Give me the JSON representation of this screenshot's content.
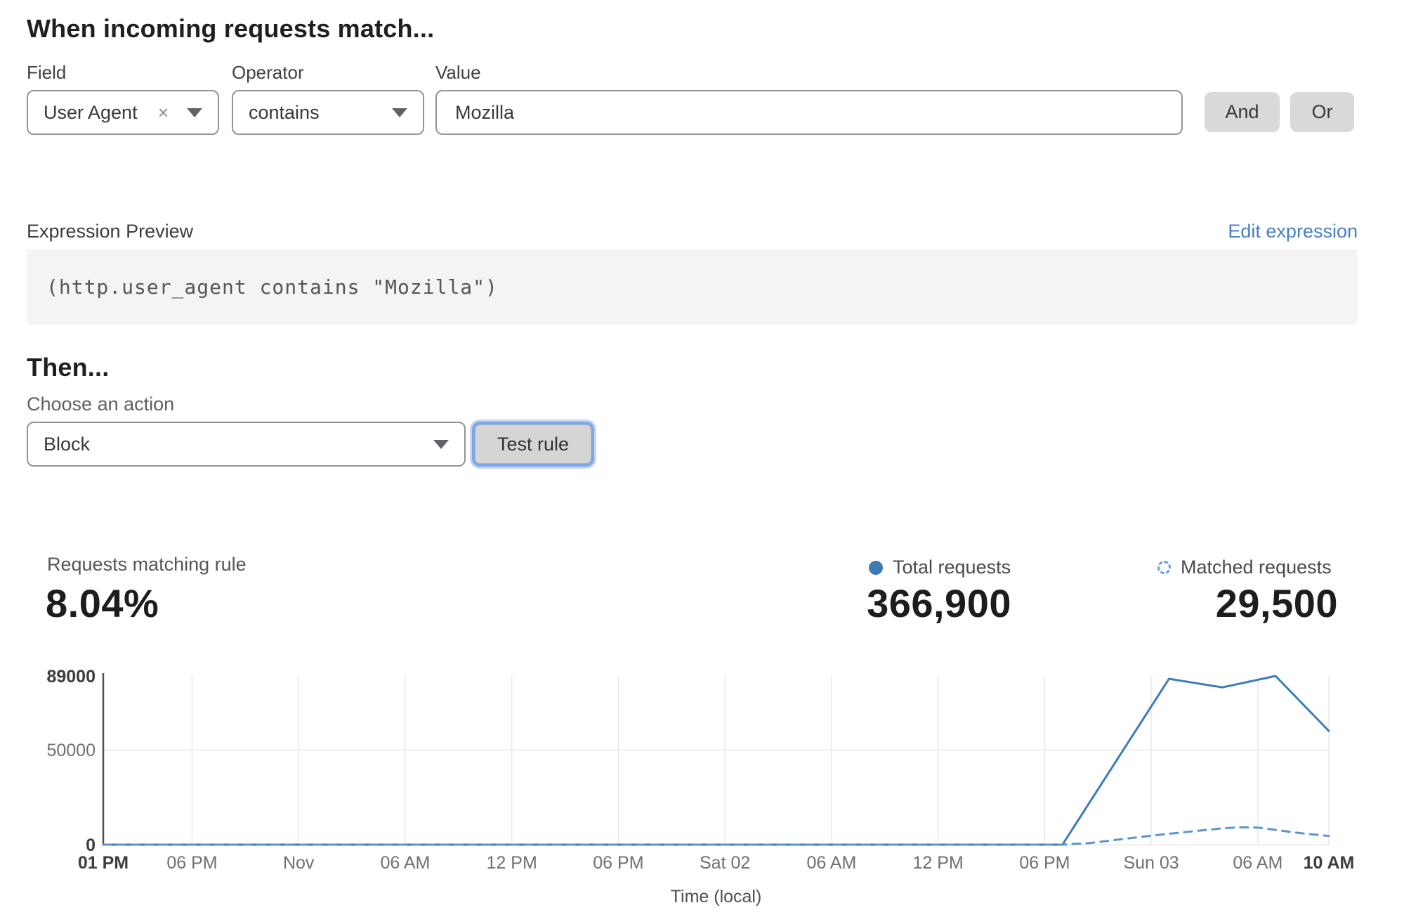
{
  "rule_builder": {
    "heading": "When incoming requests match...",
    "field": {
      "label": "Field",
      "value": "User Agent",
      "clear_glyph": "×"
    },
    "operator": {
      "label": "Operator",
      "value": "contains"
    },
    "value": {
      "label": "Value",
      "value": "Mozilla"
    },
    "and_label": "And",
    "or_label": "Or"
  },
  "expression": {
    "label": "Expression Preview",
    "edit_link": "Edit expression",
    "code": "(http.user_agent contains \"Mozilla\")"
  },
  "action": {
    "heading": "Then...",
    "choose_label": "Choose an action",
    "selected": "Block",
    "test_button": "Test rule"
  },
  "stats": {
    "match_label": "Requests matching rule",
    "match_value": "8.04%",
    "total_label": "Total requests",
    "total_value": "366,900",
    "matched_label": "Matched requests",
    "matched_value": "29,500"
  },
  "colors": {
    "solid_line": "#3e7cb8",
    "dashed_line": "#5d94c9",
    "legend_dot": "#3b7ab4",
    "legend_dashed": "#6aa1d8",
    "link_blue": "#4a80c2",
    "grid": "#e9e9e9",
    "axis": "#4f4f4f",
    "tick_gray": "#6f6f74",
    "tick_dark": "#3d3d41",
    "focus_ring": "#7da8e8"
  },
  "chart_data": {
    "type": "line",
    "title": "",
    "xlabel": "Time (local)",
    "ylabel": "",
    "ylim": [
      0,
      89000
    ],
    "x_hours_span": 69,
    "grid": true,
    "legend_position": "top-right",
    "yticks": [
      {
        "value": 0,
        "label": "0",
        "bold": true
      },
      {
        "value": 50000,
        "label": "50000",
        "bold": false
      },
      {
        "value": 89000,
        "label": "89000",
        "bold": true
      }
    ],
    "xticks": [
      {
        "h": 0,
        "label": "01 PM",
        "bold": true
      },
      {
        "h": 5,
        "label": "06 PM",
        "bold": false
      },
      {
        "h": 11,
        "label": "Nov",
        "bold": false
      },
      {
        "h": 17,
        "label": "06 AM",
        "bold": false
      },
      {
        "h": 23,
        "label": "12 PM",
        "bold": false
      },
      {
        "h": 29,
        "label": "06 PM",
        "bold": false
      },
      {
        "h": 35,
        "label": "Sat 02",
        "bold": false
      },
      {
        "h": 41,
        "label": "06 AM",
        "bold": false
      },
      {
        "h": 47,
        "label": "12 PM",
        "bold": false
      },
      {
        "h": 53,
        "label": "06 PM",
        "bold": false
      },
      {
        "h": 59,
        "label": "Sun 03",
        "bold": false
      },
      {
        "h": 65,
        "label": "06 AM",
        "bold": false
      },
      {
        "h": 69,
        "label": "10 AM",
        "bold": true
      }
    ],
    "series": [
      {
        "name": "Total requests",
        "style": "solid",
        "color": "#3e7cb8",
        "points": [
          [
            0,
            0
          ],
          [
            54,
            0
          ],
          [
            60,
            87500
          ],
          [
            63,
            83000
          ],
          [
            66,
            89000
          ],
          [
            69,
            60000
          ]
        ]
      },
      {
        "name": "Matched requests",
        "style": "dashed",
        "color": "#5d94c9",
        "points": [
          [
            0,
            0
          ],
          [
            54,
            0
          ],
          [
            55.5,
            800
          ],
          [
            57,
            2500
          ],
          [
            58.5,
            4200
          ],
          [
            60,
            5700
          ],
          [
            61.5,
            7200
          ],
          [
            63,
            8600
          ],
          [
            64,
            9200
          ],
          [
            65,
            9000
          ],
          [
            66,
            7800
          ],
          [
            67,
            6500
          ],
          [
            68,
            5500
          ],
          [
            69,
            4600
          ]
        ]
      }
    ]
  }
}
